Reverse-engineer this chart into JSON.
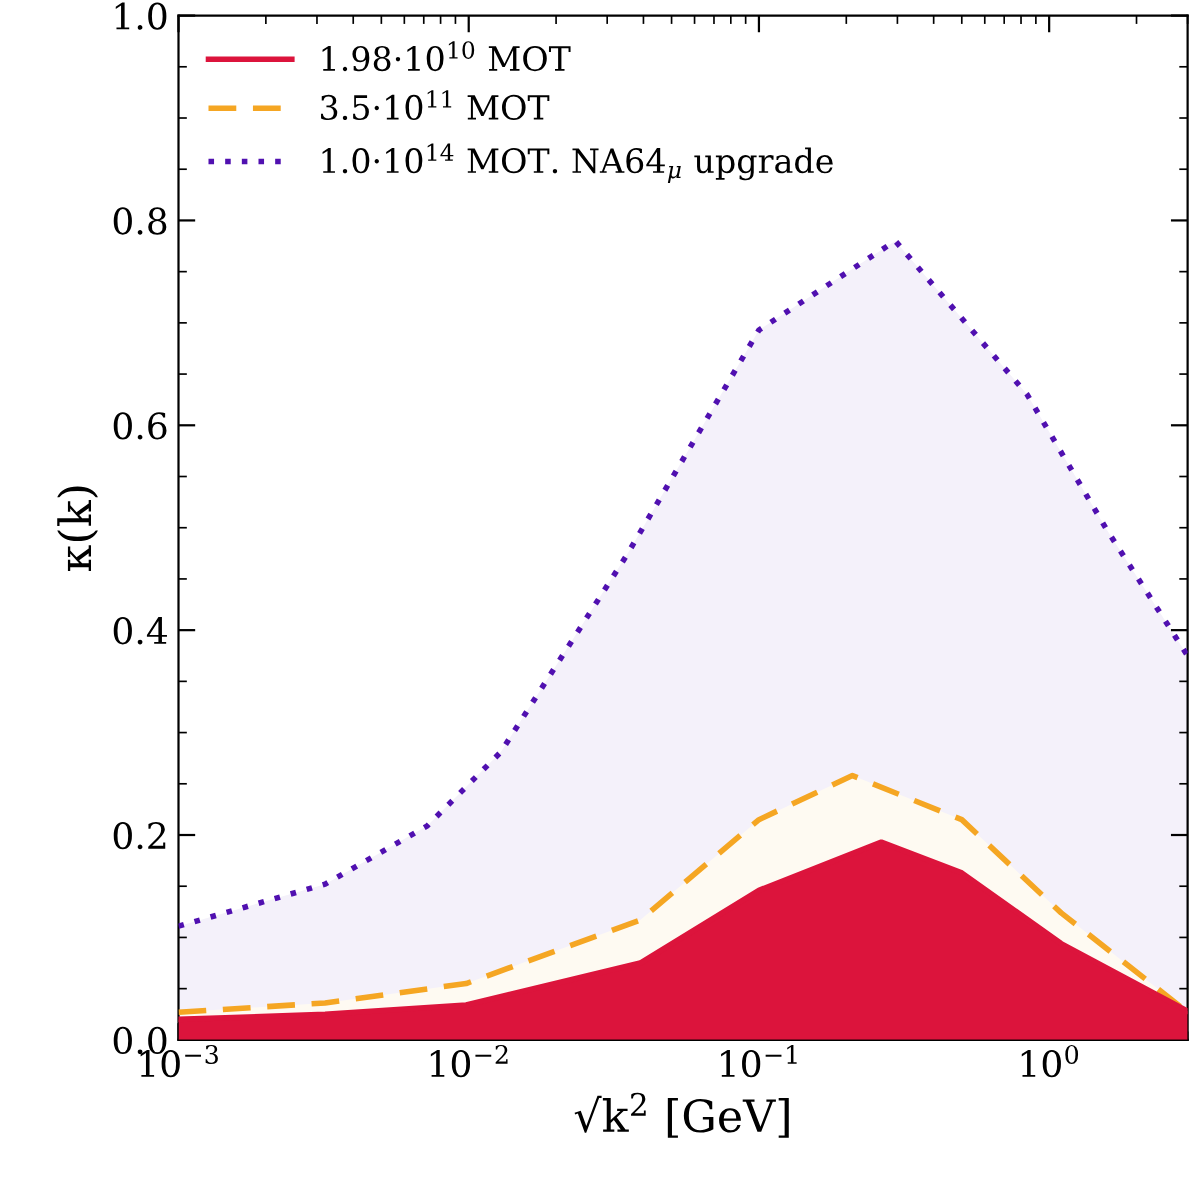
{
  "chart_data": {
    "type": "area",
    "xlabel": "√k$^{2}$ [GeV]",
    "ylabel": "κ(k)",
    "log": "x",
    "xlim": [
      0.001,
      3.0
    ],
    "ylim": [
      0,
      1.0
    ],
    "xticks": [
      {
        "value": 0.001,
        "label": "10$^{−3}$"
      },
      {
        "value": 0.01,
        "label": "10$^{−2}$"
      },
      {
        "value": 0.1,
        "label": "10$^{−1}$"
      },
      {
        "value": 1,
        "label": "10$^{0}$"
      }
    ],
    "yticks": [
      {
        "value": 0,
        "label": "0.0"
      },
      {
        "value": 0.2,
        "label": "0.2"
      },
      {
        "value": 0.4,
        "label": "0.4"
      },
      {
        "value": 0.6,
        "label": "0.6"
      },
      {
        "value": 0.8,
        "label": "0.8"
      },
      {
        "value": 1.0,
        "label": "1.0"
      }
    ],
    "grid": false,
    "legend": "top left",
    "series": [
      {
        "name": "1.98·10$^{10}$ MOT",
        "color": "#dc143c",
        "line_style": "solid",
        "x": [
          0.001,
          0.0032,
          0.0098,
          0.039,
          0.1,
          0.264,
          0.5,
          1.1,
          3.0
        ],
        "values": [
          0.02,
          0.025,
          0.034,
          0.075,
          0.146,
          0.193,
          0.163,
          0.094,
          0.028
        ]
      },
      {
        "name": "3.5·10$^{11}$ MOT",
        "color": "#f5a623",
        "line_style": "dashed",
        "x": [
          0.001,
          0.0032,
          0.0098,
          0.039,
          0.1,
          0.21,
          0.5,
          1.1,
          3.0
        ],
        "values": [
          0.027,
          0.036,
          0.055,
          0.117,
          0.215,
          0.258,
          0.215,
          0.124,
          0.027
        ]
      },
      {
        "name": "1.0·10$^{14}$ MOT. NA64$_{μ}$ upgrade",
        "color": "#5010b0",
        "line_style": "dotted",
        "x": [
          0.001,
          0.0032,
          0.0072,
          0.0129,
          0.035,
          0.1,
          0.295,
          0.84,
          1.58,
          3.0
        ],
        "values": [
          0.111,
          0.152,
          0.209,
          0.281,
          0.473,
          0.693,
          0.78,
          0.63,
          0.498,
          0.375
        ]
      }
    ]
  }
}
